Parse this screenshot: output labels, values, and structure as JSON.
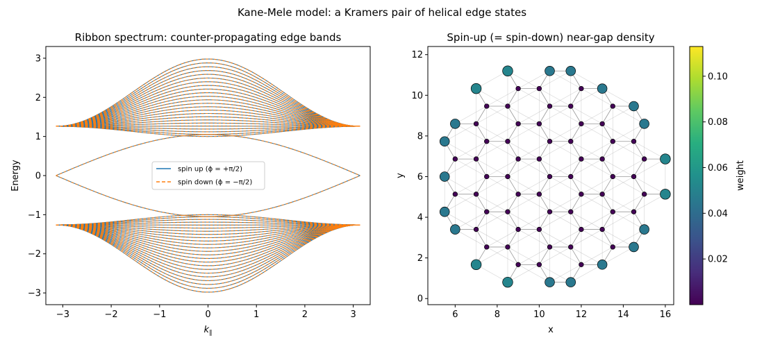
{
  "figure": {
    "suptitle": "Kane-Mele model: a Kramers pair of helical edge states"
  },
  "chart_data": [
    {
      "type": "line",
      "title": "Ribbon spectrum: counter-propagating edge bands",
      "xlabel": "k∥",
      "ylabel": "Energy",
      "xlim": [
        -3.35,
        3.35
      ],
      "ylim": [
        -3.3,
        3.3
      ],
      "x_ticks": [
        "−3",
        "−2",
        "−1",
        "0",
        "1",
        "2",
        "3"
      ],
      "y_ticks": [
        "−3",
        "−2",
        "−1",
        "0",
        "1",
        "2",
        "3"
      ],
      "x_range": [
        -3.1416,
        3.1416
      ],
      "bulk_bands_per_side": 24,
      "bulk_band_max": 2.98,
      "bulk_band_min": 1.0,
      "band_edge_at_zone_boundary": 1.26,
      "edge_state_peak": 1.05,
      "legend_position": "center",
      "series": [
        {
          "name": "spin up (ϕ = +π/2)",
          "color": "#1f77b4",
          "style": "solid"
        },
        {
          "name": "spin down (ϕ = −π/2)",
          "color": "#ff7f0e",
          "style": "dashed"
        }
      ],
      "grid": false
    },
    {
      "type": "scatter",
      "title": "Spin-up (= spin-down) near-gap density",
      "xlabel": "x",
      "ylabel": "y",
      "xlim": [
        4.7,
        16.4
      ],
      "ylim": [
        -0.3,
        12.4
      ],
      "x_ticks": [
        "6",
        "8",
        "10",
        "12",
        "14",
        "16"
      ],
      "y_ticks": [
        "0",
        "2",
        "4",
        "6",
        "8",
        "10",
        "12"
      ],
      "lattice": "honeycomb flake, circular",
      "center": [
        10.5,
        6.0
      ],
      "radius": 5.9,
      "colorbar": {
        "label": "weight",
        "range": [
          0.0,
          0.113
        ],
        "ticks": [
          "0.02",
          "0.04",
          "0.06",
          "0.08",
          "0.10"
        ],
        "colormap": "viridis"
      },
      "grid": false
    }
  ]
}
